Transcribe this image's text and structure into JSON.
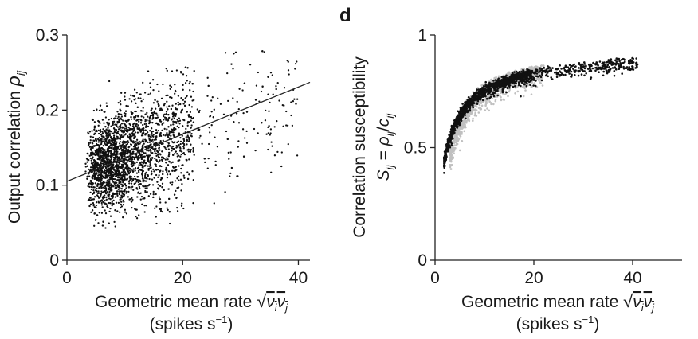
{
  "chart_data": [
    {
      "type": "scatter",
      "panel": "",
      "xlabel": "Geometric mean rate √νiνj",
      "xlabel_main": "Geometric mean rate ",
      "xlabel_sqrt": "√",
      "xlabel_nu": "ν",
      "xlabel_i": "i",
      "xlabel_j": "j",
      "xunit": "(spikes s",
      "xunit_sup": "−1",
      "xunit_close": ")",
      "ylabel_main": "Output correlation ",
      "ylabel_rho": "ρ",
      "ylabel_sub": "ij",
      "xlim": [
        0,
        42
      ],
      "ylim": [
        0,
        0.3
      ],
      "xticks": [
        "0",
        "20",
        "40"
      ],
      "xtick_values": [
        0,
        20,
        40
      ],
      "yticks": [
        "0",
        "0.1",
        "0.2",
        "0.3"
      ],
      "ytick_values": [
        0,
        0.1,
        0.2,
        0.3
      ],
      "trend_line": {
        "x": [
          0,
          42
        ],
        "y": [
          0.105,
          0.237
        ]
      },
      "series": [
        {
          "color": "#111111",
          "n_points_approx": 3000,
          "x_range": [
            2,
            40
          ],
          "y_range": [
            0.04,
            0.28
          ],
          "notes": "dense cloud concentrated at rates 3-20, spreading upward along the trend line"
        }
      ]
    },
    {
      "type": "scatter",
      "panel": "d",
      "xlabel_main": "Geometric mean rate ",
      "xlabel_sqrt": "√",
      "xlabel_nu": "ν",
      "xlabel_i": "i",
      "xlabel_j": "j",
      "xunit": "(spikes s",
      "xunit_sup": "−1",
      "xunit_close": ")",
      "ylabel_line1": "Correlation susceptibility",
      "ylabel_line2_S": "S",
      "ylabel_line2_sub1": "ij",
      "ylabel_line2_eq": " = ",
      "ylabel_line2_rho": "ρ",
      "ylabel_line2_sub2": "ij",
      "ylabel_line2_slash": "/",
      "ylabel_line2_c": "c",
      "ylabel_line2_sub3": "ij",
      "xlim": [
        0,
        50
      ],
      "ylim": [
        0,
        1
      ],
      "xticks": [
        "0",
        "20",
        "40"
      ],
      "xtick_values": [
        0,
        20,
        40
      ],
      "yticks": [
        "0",
        "0.5",
        "1"
      ],
      "ytick_values": [
        0,
        0.5,
        1
      ],
      "series": [
        {
          "color": "#c0c0c0",
          "x_range": [
            3,
            22
          ],
          "notes": "lower grey band below the black curve"
        },
        {
          "color": "#111111",
          "x_range": [
            1.5,
            41
          ],
          "notes": "saturating curve rising from ~0.33 at rate 2 to ~0.93 at rate 40"
        }
      ]
    }
  ]
}
